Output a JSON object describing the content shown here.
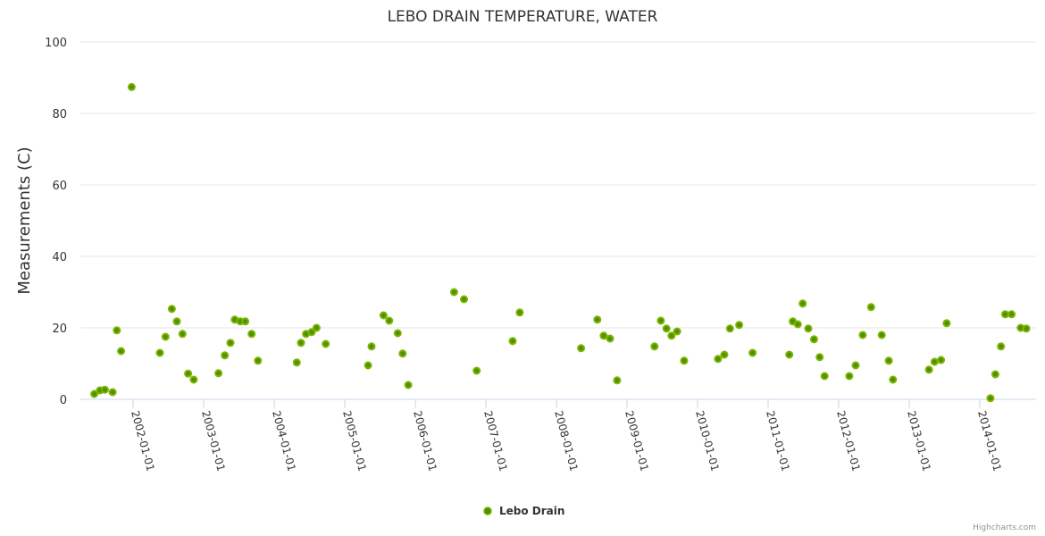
{
  "chart_data": {
    "type": "scatter",
    "title": "LEBO DRAIN TEMPERATURE, WATER",
    "xlabel": "",
    "ylabel": "Measurements (C)",
    "ylim": [
      0,
      100
    ],
    "yticks": [
      0,
      20,
      40,
      60,
      80,
      100
    ],
    "xlim": [
      2001.4,
      2015.3
    ],
    "xticks": [
      {
        "value": 2002,
        "label": "2002-01-01"
      },
      {
        "value": 2003,
        "label": "2003-01-01"
      },
      {
        "value": 2004,
        "label": "2004-01-01"
      },
      {
        "value": 2005,
        "label": "2005-01-01"
      },
      {
        "value": 2006,
        "label": "2006-01-01"
      },
      {
        "value": 2007,
        "label": "2007-01-01"
      },
      {
        "value": 2008,
        "label": "2008-01-01"
      },
      {
        "value": 2009,
        "label": "2009-01-01"
      },
      {
        "value": 2010,
        "label": "2010-01-01"
      },
      {
        "value": 2011,
        "label": "2011-01-01"
      },
      {
        "value": 2012,
        "label": "2012-01-01"
      },
      {
        "value": 2013,
        "label": "2013-01-01"
      },
      {
        "value": 2014,
        "label": "2014-01-01"
      }
    ],
    "grid": true,
    "legend": "bottom-center",
    "series": [
      {
        "name": "Lebo Drain",
        "color": "#7cb500",
        "points": [
          [
            2001.45,
            1.5
          ],
          [
            2001.53,
            2.5
          ],
          [
            2001.6,
            2.7
          ],
          [
            2001.71,
            2.0
          ],
          [
            2001.77,
            19.3
          ],
          [
            2001.83,
            13.5
          ],
          [
            2001.98,
            87.4
          ],
          [
            2002.38,
            13.0
          ],
          [
            2002.46,
            17.5
          ],
          [
            2002.55,
            25.3
          ],
          [
            2002.62,
            21.8
          ],
          [
            2002.7,
            18.3
          ],
          [
            2002.78,
            7.2
          ],
          [
            2002.86,
            5.5
          ],
          [
            2003.21,
            7.3
          ],
          [
            2003.3,
            12.3
          ],
          [
            2003.38,
            15.8
          ],
          [
            2003.44,
            22.3
          ],
          [
            2003.52,
            21.8
          ],
          [
            2003.59,
            21.8
          ],
          [
            2003.68,
            18.3
          ],
          [
            2003.77,
            10.8
          ],
          [
            2004.32,
            10.3
          ],
          [
            2004.38,
            15.8
          ],
          [
            2004.45,
            18.3
          ],
          [
            2004.53,
            18.8
          ],
          [
            2004.6,
            20.0
          ],
          [
            2004.73,
            15.5
          ],
          [
            2005.33,
            9.5
          ],
          [
            2005.38,
            14.8
          ],
          [
            2005.55,
            23.5
          ],
          [
            2005.63,
            22.0
          ],
          [
            2005.75,
            18.5
          ],
          [
            2005.82,
            12.8
          ],
          [
            2005.9,
            4.0
          ],
          [
            2006.55,
            30.0
          ],
          [
            2006.69,
            28.0
          ],
          [
            2006.87,
            8.0
          ],
          [
            2007.38,
            16.3
          ],
          [
            2007.48,
            24.3
          ],
          [
            2008.35,
            14.3
          ],
          [
            2008.58,
            22.3
          ],
          [
            2008.67,
            17.8
          ],
          [
            2008.76,
            17.0
          ],
          [
            2008.86,
            5.3
          ],
          [
            2009.39,
            14.8
          ],
          [
            2009.48,
            22.0
          ],
          [
            2009.56,
            19.8
          ],
          [
            2009.63,
            17.8
          ],
          [
            2009.71,
            19.0
          ],
          [
            2009.81,
            10.8
          ],
          [
            2010.29,
            11.3
          ],
          [
            2010.38,
            12.5
          ],
          [
            2010.46,
            19.8
          ],
          [
            2010.59,
            20.8
          ],
          [
            2010.78,
            13.0
          ],
          [
            2011.3,
            12.5
          ],
          [
            2011.35,
            21.8
          ],
          [
            2011.42,
            21.0
          ],
          [
            2011.49,
            26.8
          ],
          [
            2011.57,
            19.8
          ],
          [
            2011.65,
            16.8
          ],
          [
            2011.73,
            11.8
          ],
          [
            2011.8,
            6.5
          ],
          [
            2012.15,
            6.5
          ],
          [
            2012.24,
            9.5
          ],
          [
            2012.34,
            18.0
          ],
          [
            2012.46,
            25.8
          ],
          [
            2012.61,
            18.0
          ],
          [
            2012.71,
            10.8
          ],
          [
            2012.77,
            5.5
          ],
          [
            2013.28,
            8.3
          ],
          [
            2013.36,
            10.5
          ],
          [
            2013.45,
            11.0
          ],
          [
            2013.53,
            21.3
          ],
          [
            2014.15,
            0.3
          ],
          [
            2014.22,
            7.0
          ],
          [
            2014.3,
            14.8
          ],
          [
            2014.36,
            23.8
          ],
          [
            2014.45,
            23.8
          ],
          [
            2014.58,
            20.0
          ],
          [
            2014.66,
            19.8
          ]
        ]
      }
    ]
  },
  "credits": "Highcharts.com"
}
